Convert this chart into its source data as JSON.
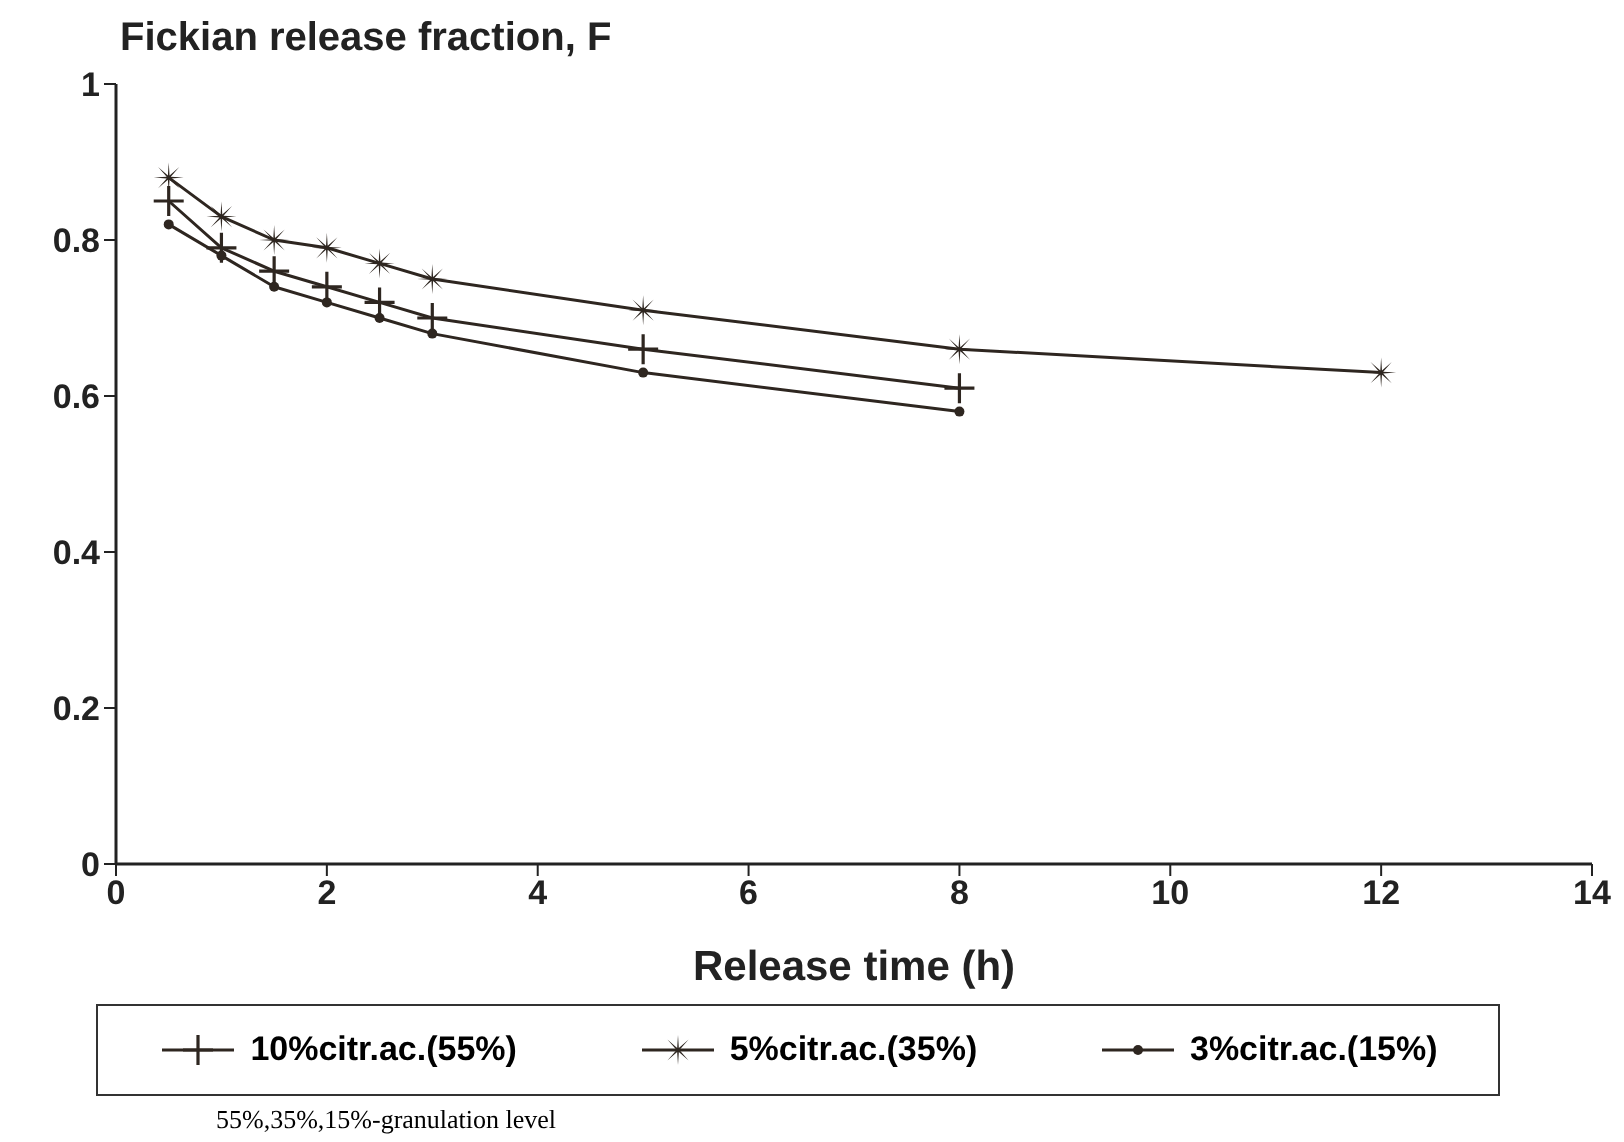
{
  "chart_data": {
    "type": "line",
    "ylabel": "Fickian release fraction, F",
    "xlabel": "Release time (h)",
    "x": [
      0.5,
      1,
      1.5,
      2,
      2.5,
      3,
      5,
      8,
      12
    ],
    "series": [
      {
        "name": "10%citr.ac.(55%)",
        "color": "#2e2620",
        "marker": "cross",
        "values": [
          0.85,
          0.79,
          0.76,
          0.74,
          0.72,
          0.7,
          0.66,
          0.61,
          null
        ]
      },
      {
        "name": "5%citr.ac.(35%)",
        "color": "#2e2620",
        "marker": "star",
        "values": [
          0.88,
          0.83,
          0.8,
          0.79,
          0.77,
          0.75,
          0.71,
          0.66,
          0.63
        ]
      },
      {
        "name": "3%citr.ac.(15%)",
        "color": "#2e2620",
        "marker": "circle",
        "values": [
          0.82,
          0.78,
          0.74,
          0.72,
          0.7,
          0.68,
          0.63,
          0.58,
          null
        ]
      }
    ],
    "xlim": [
      0,
      14
    ],
    "xticks": [
      0,
      2,
      4,
      6,
      8,
      10,
      12,
      14
    ],
    "ylim": [
      0,
      1
    ],
    "yticks": [
      0,
      0.2,
      0.4,
      0.6,
      0.8,
      1
    ],
    "grid": false,
    "legend": "bottom",
    "line_style": "solid",
    "annotations": [
      "55%,35%,15%-granulation level"
    ]
  }
}
